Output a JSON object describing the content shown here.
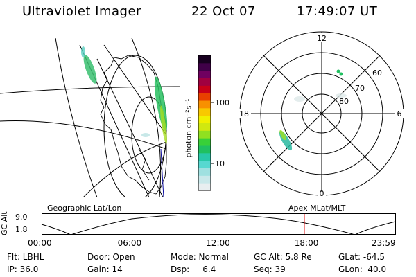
{
  "header": {
    "instrument": "Ultraviolet Imager",
    "date": "22 Oct 07",
    "time": "17:49:07 UT"
  },
  "colorbar": {
    "unit_label": "photon cm⁻²s⁻¹",
    "ticks": [
      "100",
      "10"
    ],
    "colors": [
      "#e8eef0",
      "#c9e8ea",
      "#9fe0e0",
      "#57d8d0",
      "#28c8a8",
      "#20c060",
      "#38d038",
      "#90e020",
      "#d0e810",
      "#f0f000",
      "#f8c800",
      "#f89000",
      "#e84000",
      "#c80018",
      "#a00040",
      "#700060",
      "#400048",
      "#180020"
    ]
  },
  "polar": {
    "mlt_labels": {
      "top": "12",
      "left": "18",
      "right": "6",
      "bottom": "0"
    },
    "lat_labels": [
      "60",
      "70",
      "80"
    ]
  },
  "timeline": {
    "left_title": "Geographic Lat/Lon",
    "right_title": "Apex MLat/MLT",
    "axis_title": "GC Alt",
    "y_ticks": [
      "9.0",
      "1.8"
    ],
    "x_ticks": [
      "00:00",
      "06:00",
      "12:00",
      "18:00",
      "23:59"
    ],
    "marker_time": "17:49",
    "marker_color": "#e00000"
  },
  "footer": {
    "filter": "Flt: LBHL",
    "door": "Door: Open",
    "mode": "Mode: Normal",
    "gc_alt": "GC Alt: 5.8 Re",
    "glat": "GLat: -64.5",
    "ip": "IP: 36.0",
    "gain": "Gain: 14",
    "dsp": "Dsp:     6.4",
    "seq": "Seq: 39",
    "glon": "GLon:  40.0"
  }
}
